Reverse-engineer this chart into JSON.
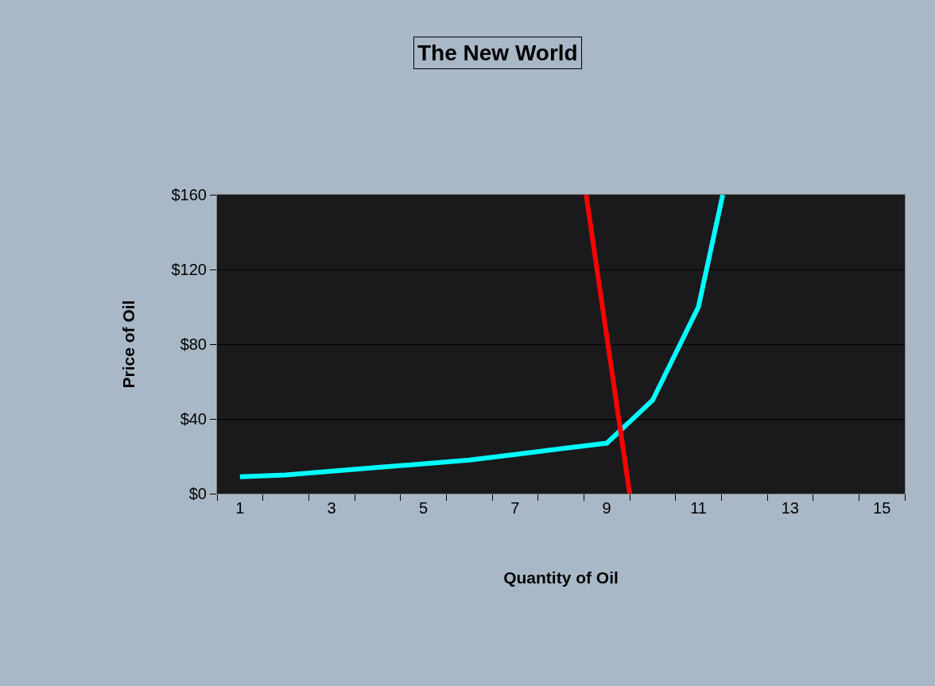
{
  "chart_data": {
    "type": "line",
    "title": "The New World",
    "xlabel": "Quantity of Oil",
    "ylabel": "Price of Oil",
    "series": [
      {
        "color": "#00ffff",
        "x": [
          1,
          2,
          3,
          4,
          5,
          6,
          7,
          8,
          9,
          10,
          11,
          11.53
        ],
        "values": [
          9,
          10,
          12,
          14,
          16,
          18,
          21,
          24,
          27,
          50,
          100,
          160
        ]
      },
      {
        "color": "#ff0000",
        "x": [
          8.55,
          9.5
        ],
        "values": [
          160,
          0
        ]
      }
    ],
    "xlim": [
      0.5,
      15.5
    ],
    "xticks": [
      1,
      3,
      5,
      7,
      9,
      11,
      13,
      15,
      {
        "value": 0.5,
        "label": null
      },
      {
        "value": 1.5,
        "label": null
      },
      {
        "value": 2.5,
        "label": null
      },
      {
        "value": 3.5,
        "label": null
      },
      {
        "value": 4.5,
        "label": null
      },
      {
        "value": 5.5,
        "label": null
      },
      {
        "value": 6.5,
        "label": null
      },
      {
        "value": 7.5,
        "label": null
      },
      {
        "value": 8.5,
        "label": null
      },
      {
        "value": 9.5,
        "label": null
      },
      {
        "value": 10.5,
        "label": null
      },
      {
        "value": 11.5,
        "label": null
      },
      {
        "value": 12.5,
        "label": null
      },
      {
        "value": 13.5,
        "label": null
      },
      {
        "value": 14.5,
        "label": null
      },
      {
        "value": 15.5,
        "label": null
      }
    ],
    "ylim": [
      0,
      160
    ],
    "yticks": [
      {
        "value": 0,
        "label": "$0"
      },
      {
        "value": 40,
        "label": "$40"
      },
      {
        "value": 80,
        "label": "$80"
      },
      {
        "value": 120,
        "label": "$120"
      },
      {
        "value": 160,
        "label": "$160"
      }
    ],
    "grid": "y",
    "marker": "none",
    "line_style": "solid"
  }
}
